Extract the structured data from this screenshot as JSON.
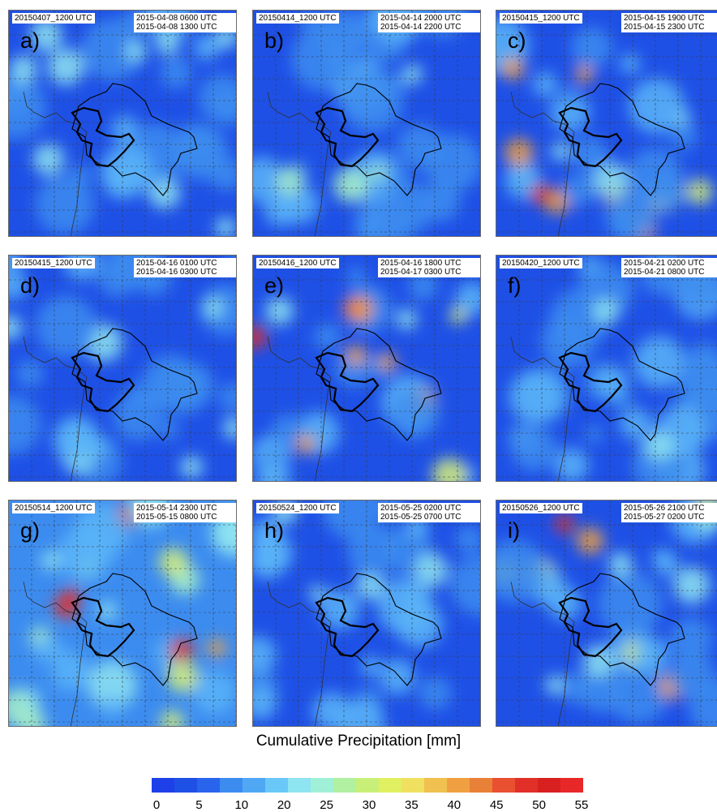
{
  "panels": [
    {
      "letter": "a)",
      "run": "20150407_1200 UTC",
      "window_start": "2015-04-08 0600 UTC",
      "window_end": "2015-04-08 1300 UTC",
      "palette": [
        "#1e50e6",
        "#3c8cf0",
        "#5ab4f8",
        "#8ee4f0"
      ]
    },
    {
      "letter": "b)",
      "run": "20150414_1200 UTC",
      "window_start": "2015-04-14 2000 UTC",
      "window_end": "2015-04-14 2200 UTC",
      "palette": [
        "#1e50e6",
        "#3c8cf0",
        "#5ab4f8",
        "#8ee4f0",
        "#a8f0c8"
      ]
    },
    {
      "letter": "c)",
      "run": "20150415_1200 UTC",
      "window_start": "2015-04-15 1900 UTC",
      "window_end": "2015-04-15 2300 UTC",
      "palette": [
        "#1e50e6",
        "#3c8cf0",
        "#5ab4f8",
        "#8ee4f0",
        "#d8f078",
        "#f0a040",
        "#e0302c"
      ]
    },
    {
      "letter": "d)",
      "run": "20150415_1200 UTC",
      "window_start": "2015-04-16 0100 UTC",
      "window_end": "2015-04-16 0300 UTC",
      "palette": [
        "#1e50e6",
        "#3c8cf0",
        "#5ab4f8",
        "#8ee4f0"
      ]
    },
    {
      "letter": "e)",
      "run": "20150416_1200 UTC",
      "window_start": "2015-04-16 1800 UTC",
      "window_end": "2015-04-17 0300 UTC",
      "palette": [
        "#1e50e6",
        "#3c8cf0",
        "#5ab4f8",
        "#8ee4f0",
        "#d8f078",
        "#f0a040",
        "#e0302c"
      ]
    },
    {
      "letter": "f)",
      "run": "20150420_1200 UTC",
      "window_start": "2015-04-21 0200 UTC",
      "window_end": "2015-04-21 0800 UTC",
      "palette": [
        "#1e50e6",
        "#3c8cf0",
        "#5ab4f8",
        "#8ee4f0"
      ]
    },
    {
      "letter": "g)",
      "run": "20150514_1200 UTC",
      "window_start": "2015-05-14 2300 UTC",
      "window_end": "2015-05-15 0800 UTC",
      "palette": [
        "#3c8cf0",
        "#5ab4f8",
        "#8ee4f0",
        "#a8f0c8",
        "#d8f078",
        "#f0a040",
        "#e0302c"
      ]
    },
    {
      "letter": "h)",
      "run": "20150524_1200 UTC",
      "window_start": "2015-05-25 0200 UTC",
      "window_end": "2015-05-25 0700 UTC",
      "palette": [
        "#1e50e6",
        "#3c8cf0",
        "#5ab4f8",
        "#8ee4f0"
      ]
    },
    {
      "letter": "i)",
      "run": "20150526_1200 UTC",
      "window_start": "2015-05-26 2100 UTC",
      "window_end": "2015-05-27 0200 UTC",
      "palette": [
        "#1e50e6",
        "#3c8cf0",
        "#5ab4f8",
        "#8ee4f0",
        "#d8f078",
        "#f0a040",
        "#e0302c"
      ]
    }
  ],
  "caption": "Cumulative Precipitation [mm]",
  "colorbar": {
    "ticks": [
      "0",
      "5",
      "10",
      "20",
      "25",
      "30",
      "35",
      "40",
      "45",
      "50",
      "55"
    ],
    "colors": [
      "#1e40e8",
      "#1e50e6",
      "#2864ec",
      "#3c8cf0",
      "#50a8f4",
      "#6ac8f8",
      "#8ee4f0",
      "#a0f0d8",
      "#b0f0a0",
      "#c8f078",
      "#e0f060",
      "#f0e060",
      "#f0c050",
      "#f0a040",
      "#e88038",
      "#e85030",
      "#e03028",
      "#d82020",
      "#e82828"
    ]
  }
}
